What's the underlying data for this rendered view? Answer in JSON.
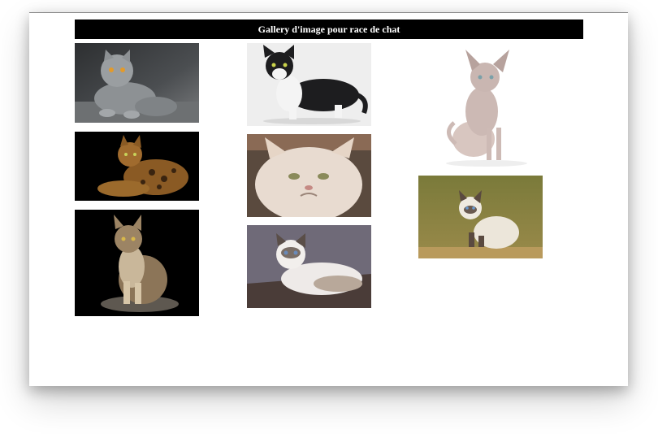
{
  "page": {
    "header_title": "Gallery d'image pour race de chat"
  },
  "gallery": {
    "photos": [
      {
        "subject": "grey cat lying on floor"
      },
      {
        "subject": "bengal cat lying on black background"
      },
      {
        "subject": "maine coon cat sitting on black background"
      },
      {
        "subject": "black and white cat crouching"
      },
      {
        "subject": "persian cat close-up"
      },
      {
        "subject": "ragdoll cat lying on cushion"
      },
      {
        "subject": "sphynx cat sitting"
      },
      {
        "subject": "siamese cat sitting in grass"
      }
    ]
  }
}
